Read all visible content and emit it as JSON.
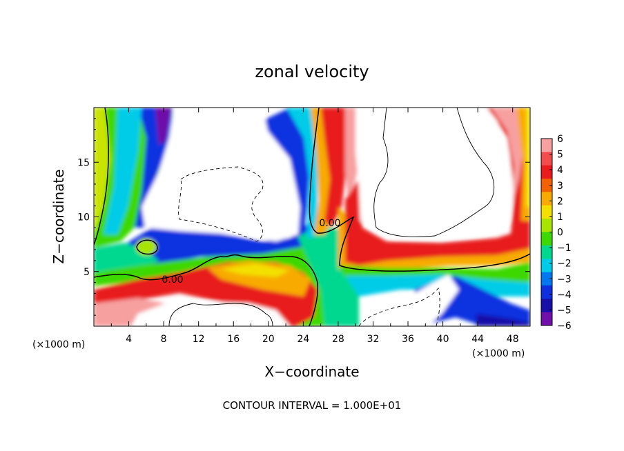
{
  "chart_data": {
    "type": "heatmap",
    "title": "zonal velocity",
    "xlabel": "X−coordinate",
    "ylabel": "Z−coordinate",
    "x_unit": "(×1000 m)",
    "y_unit": "(×1000 m)",
    "xlim": [
      0,
      50
    ],
    "ylim": [
      0,
      20
    ],
    "x_ticks": [
      "4",
      "8",
      "12",
      "16",
      "20",
      "24",
      "28",
      "32",
      "36",
      "40",
      "44",
      "48"
    ],
    "y_ticks": [
      "5",
      "10",
      "15"
    ],
    "footer": "CONTOUR INTERVAL = 1.000E+01",
    "contour_labels": [
      {
        "text": "0.00",
        "x": 27.0,
        "y": 9.2
      },
      {
        "text": "0.00",
        "x": 9.0,
        "y": 4.2
      }
    ],
    "colorbar": {
      "min": -6,
      "max": 6,
      "tick_labels": [
        "6",
        "5",
        "4",
        "3",
        "2",
        "1",
        "0",
        "−1",
        "−2",
        "−3",
        "−4",
        "−5",
        "−6"
      ],
      "colors": [
        "#f7a0a0",
        "#f34c4c",
        "#e81c1c",
        "#f26200",
        "#f8aa00",
        "#f3e000",
        "#a8e400",
        "#3ed800",
        "#00d890",
        "#00cce8",
        "#0078f0",
        "#1030e0",
        "#1810a8",
        "#7010a8"
      ]
    }
  }
}
